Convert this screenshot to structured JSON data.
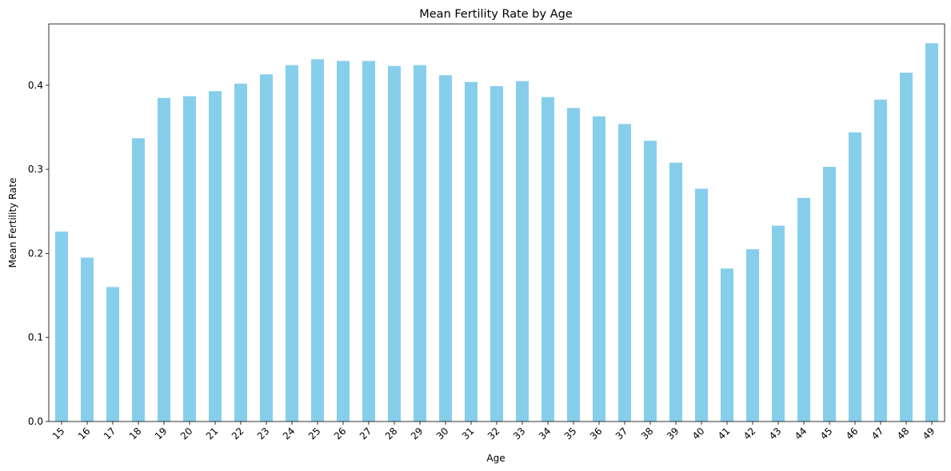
{
  "chart_data": {
    "type": "bar",
    "title": "Mean Fertility Rate by Age",
    "xlabel": "Age",
    "ylabel": "Mean Fertility Rate",
    "ylim": [
      0,
      0.473
    ],
    "yticks": [
      "0.0",
      "0.1",
      "0.2",
      "0.3",
      "0.4"
    ],
    "categories": [
      "15",
      "16",
      "17",
      "18",
      "19",
      "20",
      "21",
      "22",
      "23",
      "24",
      "25",
      "26",
      "27",
      "28",
      "29",
      "30",
      "31",
      "32",
      "33",
      "34",
      "35",
      "36",
      "37",
      "38",
      "39",
      "40",
      "41",
      "42",
      "43",
      "44",
      "45",
      "46",
      "47",
      "48",
      "49"
    ],
    "values": [
      0.226,
      0.195,
      0.16,
      0.337,
      0.385,
      0.387,
      0.393,
      0.402,
      0.413,
      0.424,
      0.431,
      0.429,
      0.429,
      0.423,
      0.424,
      0.412,
      0.404,
      0.399,
      0.405,
      0.386,
      0.373,
      0.363,
      0.354,
      0.334,
      0.308,
      0.277,
      0.182,
      0.205,
      0.233,
      0.266,
      0.303,
      0.344,
      0.383,
      0.415,
      0.45
    ],
    "bar_color": "#87ceeb",
    "grid": false,
    "legend": "none"
  }
}
